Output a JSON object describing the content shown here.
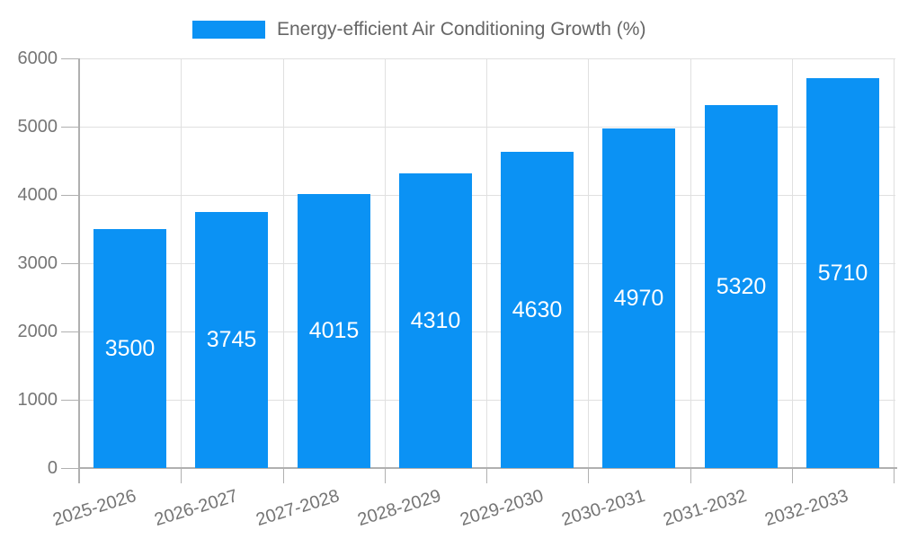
{
  "legend": {
    "label": "Energy-efficient Air Conditioning Growth (%)"
  },
  "chart_data": {
    "type": "bar",
    "title": "Energy-efficient Air Conditioning Growth (%)",
    "categories": [
      "2025-2026",
      "2026-2027",
      "2027-2028",
      "2028-2029",
      "2029-2030",
      "2030-2031",
      "2031-2032",
      "2032-2033"
    ],
    "values": [
      3500,
      3745,
      4015,
      4310,
      4630,
      4970,
      5320,
      5710
    ],
    "bar_labels": [
      "3500",
      "3745",
      "4015",
      "4310",
      "4630",
      "4970",
      "5320",
      "5710"
    ],
    "xlabel": "",
    "ylabel": "",
    "ylim": [
      0,
      6000
    ],
    "ytick_step": 1000,
    "ytick_labels": [
      "0",
      "1000",
      "2000",
      "3000",
      "4000",
      "5000",
      "6000"
    ],
    "grid": true,
    "legend_position": "top",
    "x_label_rotation_deg": -17
  },
  "colors": {
    "bar": "#0b92f4",
    "bar_label": "#ffffff",
    "gridline": "#e0e0e0",
    "axis": "#b0b0b0",
    "tick_text": "#757575",
    "legend_text": "#666666",
    "background": "#ffffff"
  }
}
